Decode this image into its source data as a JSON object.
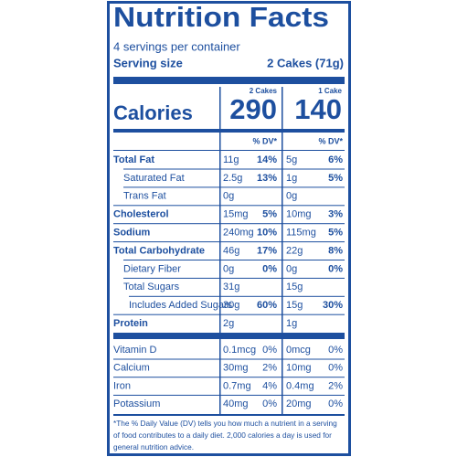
{
  "header": {
    "title": "Nutrition Facts",
    "servings": "4 servings per container",
    "serving_size_label": "Serving size",
    "serving_size": "2 Cakes (71g)"
  },
  "calories_label": "Calories",
  "columns": [
    {
      "label": "2 Cakes",
      "calories": 290,
      "dv_label": "% DV*"
    },
    {
      "label": "1 Cake",
      "calories": 140,
      "dv_label": "% DV*"
    }
  ],
  "nutrients": [
    {
      "name": "Total Fat",
      "bold": true,
      "indent": 0,
      "values": [
        {
          "amount": "11g",
          "dv": "14%"
        },
        {
          "amount": "5g",
          "dv": "6%"
        }
      ]
    },
    {
      "name": "Saturated Fat",
      "bold": false,
      "indent": 1,
      "values": [
        {
          "amount": "2.5g",
          "dv": "13%"
        },
        {
          "amount": "1g",
          "dv": "5%"
        }
      ]
    },
    {
      "name": "Trans Fat",
      "bold": false,
      "indent": 1,
      "values": [
        {
          "amount": "0g"
        },
        {
          "amount": "0g"
        }
      ]
    },
    {
      "name": "Cholesterol",
      "bold": true,
      "indent": 0,
      "values": [
        {
          "amount": "15mg",
          "dv": "5%"
        },
        {
          "amount": "10mg",
          "dv": "3%"
        }
      ]
    },
    {
      "name": "Sodium",
      "bold": true,
      "indent": 0,
      "values": [
        {
          "amount": "240mg",
          "dv": "10%"
        },
        {
          "amount": "115mg",
          "dv": "5%"
        }
      ]
    },
    {
      "name": "Total Carbohydrate",
      "bold": true,
      "indent": 0,
      "values": [
        {
          "amount": "46g",
          "dv": "17%"
        },
        {
          "amount": "22g",
          "dv": "8%"
        }
      ]
    },
    {
      "name": "Dietary Fiber",
      "bold": false,
      "indent": 1,
      "values": [
        {
          "amount": "0g",
          "dv": "0%"
        },
        {
          "amount": "0g",
          "dv": "0%"
        }
      ]
    },
    {
      "name": "Total Sugars",
      "bold": false,
      "indent": 1,
      "values": [
        {
          "amount": "31g"
        },
        {
          "amount": "15g"
        }
      ]
    },
    {
      "name": "Includes Added Sugars",
      "bold": false,
      "indent": 2,
      "values": [
        {
          "amount": "30g",
          "dv": "60%"
        },
        {
          "amount": "15g",
          "dv": "30%"
        }
      ]
    },
    {
      "name": "Protein",
      "bold": true,
      "indent": 0,
      "values": [
        {
          "amount": "2g"
        },
        {
          "amount": "1g"
        }
      ]
    }
  ],
  "vitamins": [
    {
      "name": "Vitamin D",
      "values": [
        {
          "amount": "0.1mcg",
          "dv": "0%"
        },
        {
          "amount": "0mcg",
          "dv": "0%"
        }
      ]
    },
    {
      "name": "Calcium",
      "values": [
        {
          "amount": "30mg",
          "dv": "2%"
        },
        {
          "amount": "10mg",
          "dv": "0%"
        }
      ]
    },
    {
      "name": "Iron",
      "values": [
        {
          "amount": "0.7mg",
          "dv": "4%"
        },
        {
          "amount": "0.4mg",
          "dv": "2%"
        }
      ]
    },
    {
      "name": "Potassium",
      "values": [
        {
          "amount": "40mg",
          "dv": "0%"
        },
        {
          "amount": "20mg",
          "dv": "0%"
        }
      ]
    }
  ],
  "footnote": [
    "*The % Daily Value (DV) tells you how much a nutrient in a serving",
    "of food contributes to a daily diet. 2,000 calories a day is used for",
    "general nutrition advice."
  ]
}
